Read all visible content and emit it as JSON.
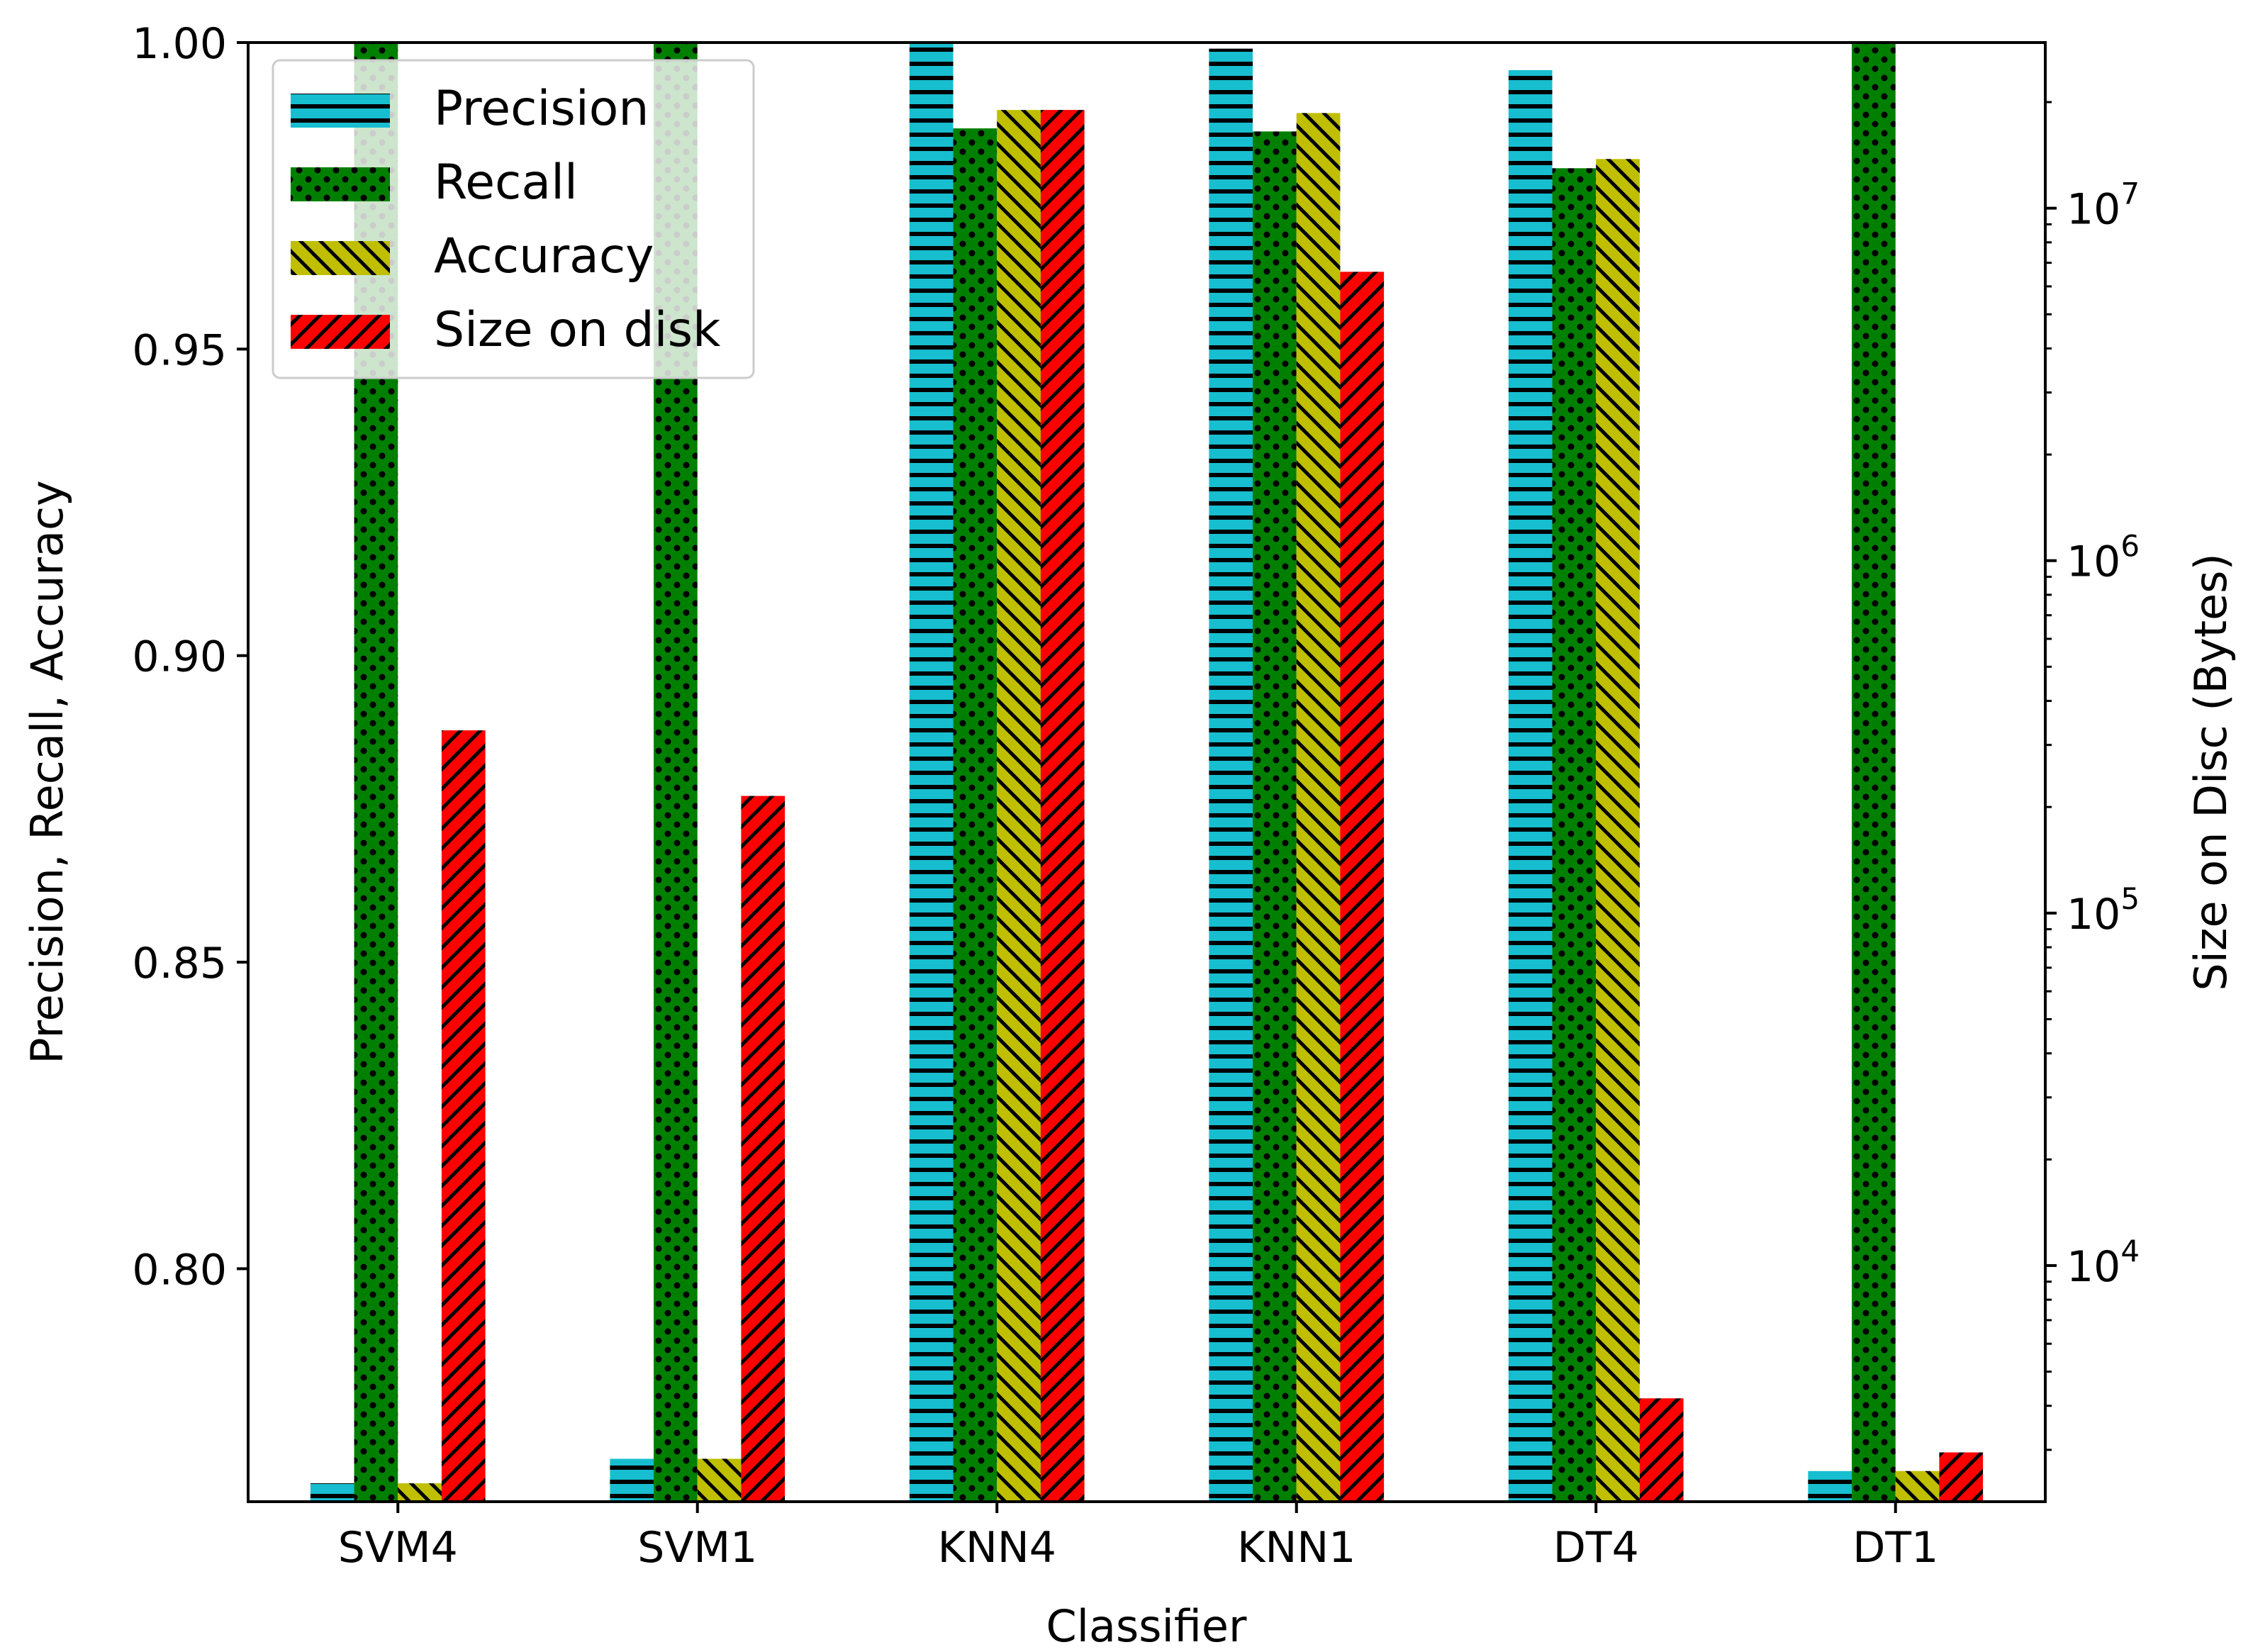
{
  "chart_data": {
    "type": "bar",
    "title": "",
    "xlabel": "Classifier",
    "ylabel": "Precision, Recall, Accuracy",
    "y2label": "Size on Disc (Bytes)",
    "categories": [
      "SVM4",
      "SVM1",
      "KNN4",
      "KNN1",
      "DT4",
      "DT1"
    ],
    "ylim": [
      0.762,
      1.0
    ],
    "y2lim_log10": [
      3.33,
      7.47
    ],
    "y_ticks": [
      "0.80",
      "0.85",
      "0.90",
      "0.95",
      "1.00"
    ],
    "y2_ticks": [
      {
        "base": "10",
        "exp": "4"
      },
      {
        "base": "10",
        "exp": "5"
      },
      {
        "base": "10",
        "exp": "6"
      },
      {
        "base": "10",
        "exp": "7"
      }
    ],
    "legend_position": "top-left",
    "series": [
      {
        "name": "Precision",
        "axis": "left",
        "color": "#17becf",
        "hatch": "horizontal",
        "values": [
          0.765,
          0.769,
          1.0,
          0.999,
          0.9955,
          0.767
        ]
      },
      {
        "name": "Recall",
        "axis": "left",
        "color": "#007f00",
        "hatch": "dots",
        "values": [
          1.0,
          1.0,
          0.986,
          0.9855,
          0.9795,
          1.0
        ]
      },
      {
        "name": "Accuracy",
        "axis": "left",
        "color": "#bfbf00",
        "hatch": "backslash",
        "values": [
          0.765,
          0.769,
          0.989,
          0.9885,
          0.981,
          0.767
        ]
      },
      {
        "name": "Size on disk",
        "axis": "right",
        "color": "#ff0000",
        "hatch": "slash",
        "values": [
          330000,
          215000,
          19000000,
          6600000,
          4200,
          2950
        ]
      }
    ]
  }
}
